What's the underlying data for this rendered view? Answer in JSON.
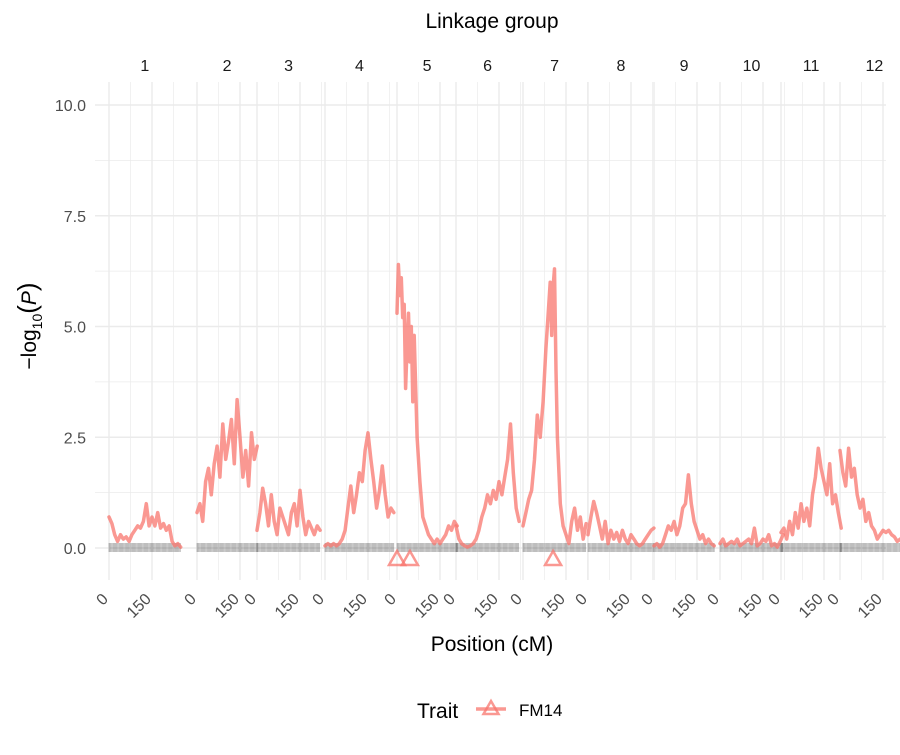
{
  "chart_data": {
    "type": "line",
    "title": "",
    "top_axis_title": "Linkage group",
    "xlabel": "Position (cM)",
    "ylabel_prefix": "−log",
    "ylabel_subscript": "10",
    "ylabel_var": "P",
    "ylim": [
      0,
      10
    ],
    "y_ticks": [
      0,
      2.5,
      5,
      7.5,
      10
    ],
    "y_tick_labels": [
      "0.0",
      "2.5",
      "5.0",
      "7.5",
      "10.0"
    ],
    "x_tick_labels": [
      "0",
      "150"
    ],
    "grid": true,
    "legend": {
      "title": "Trait",
      "position": "bottom",
      "entries": [
        "FM14"
      ]
    },
    "series_color": "#F8766D",
    "panels": [
      {
        "group": "1",
        "length": 250,
        "x": [
          0,
          10,
          20,
          30,
          40,
          50,
          60,
          70,
          80,
          90,
          100,
          110,
          120,
          130,
          140,
          150,
          160,
          170,
          180,
          190,
          200,
          210,
          220,
          230,
          240,
          250
        ],
        "y": [
          0.7,
          0.55,
          0.3,
          0.15,
          0.3,
          0.2,
          0.25,
          0.15,
          0.3,
          0.4,
          0.5,
          0.45,
          0.6,
          1.0,
          0.5,
          0.7,
          0.5,
          0.8,
          0.45,
          0.55,
          0.4,
          0.5,
          0.15,
          0.05,
          0.1,
          0.02
        ],
        "peaks": []
      },
      {
        "group": "2",
        "length": 210,
        "x": [
          0,
          10,
          20,
          30,
          40,
          50,
          60,
          70,
          80,
          90,
          100,
          110,
          120,
          130,
          140,
          150,
          160,
          170,
          180,
          190,
          200,
          210
        ],
        "y": [
          0.8,
          1.0,
          0.6,
          1.5,
          1.8,
          1.2,
          1.9,
          2.3,
          1.6,
          2.8,
          2.0,
          2.4,
          2.9,
          1.9,
          3.35,
          2.5,
          1.6,
          2.2,
          1.4,
          2.6,
          2.0,
          2.3
        ],
        "peaks": []
      },
      {
        "group": "3",
        "length": 220,
        "x": [
          0,
          10,
          20,
          30,
          40,
          50,
          60,
          70,
          80,
          90,
          100,
          110,
          120,
          130,
          140,
          150,
          160,
          170,
          180,
          190,
          200,
          210,
          220
        ],
        "y": [
          0.4,
          0.8,
          1.35,
          1.0,
          0.5,
          1.2,
          0.6,
          0.3,
          0.9,
          0.7,
          0.5,
          0.3,
          0.8,
          1.0,
          0.5,
          1.3,
          0.7,
          0.3,
          0.6,
          0.45,
          0.3,
          0.5,
          0.4
        ],
        "peaks": []
      },
      {
        "group": "4",
        "length": 240,
        "x": [
          0,
          10,
          20,
          30,
          40,
          50,
          60,
          70,
          80,
          90,
          100,
          110,
          120,
          130,
          140,
          150,
          160,
          170,
          180,
          190,
          200,
          210,
          220,
          230,
          240
        ],
        "y": [
          0.05,
          0.1,
          0.05,
          0.1,
          0.05,
          0.1,
          0.2,
          0.4,
          0.9,
          1.4,
          0.8,
          1.2,
          1.7,
          1.5,
          2.2,
          2.6,
          2.0,
          1.5,
          0.9,
          1.3,
          1.85,
          1.2,
          0.7,
          0.9,
          0.8
        ],
        "peaks": []
      },
      {
        "group": "5",
        "length": 210,
        "x": [
          0,
          5,
          10,
          15,
          20,
          25,
          30,
          35,
          40,
          45,
          50,
          55,
          60,
          70,
          80,
          90,
          100,
          110,
          120,
          130,
          140,
          150,
          160,
          170,
          180,
          190,
          200,
          210
        ],
        "y": [
          5.3,
          6.4,
          5.7,
          6.1,
          5.2,
          5.5,
          3.6,
          4.5,
          5.3,
          4.2,
          5.0,
          3.3,
          4.8,
          2.5,
          1.5,
          0.7,
          0.5,
          0.3,
          0.2,
          0.1,
          0.2,
          0.1,
          0.2,
          0.3,
          0.5,
          0.4,
          0.6,
          0.5
        ],
        "peaks": [
          0,
          45
        ]
      },
      {
        "group": "6",
        "length": 220,
        "x": [
          0,
          10,
          20,
          30,
          40,
          50,
          60,
          70,
          80,
          90,
          100,
          110,
          120,
          130,
          140,
          150,
          160,
          170,
          180,
          190,
          200,
          210,
          220
        ],
        "y": [
          0.5,
          0.2,
          0.1,
          0.05,
          0.02,
          0.05,
          0.1,
          0.2,
          0.4,
          0.7,
          0.9,
          1.2,
          1.0,
          1.3,
          1.1,
          1.5,
          1.2,
          1.6,
          2.0,
          2.8,
          1.7,
          0.9,
          0.6
        ],
        "peaks": []
      },
      {
        "group": "7",
        "length": 220,
        "x": [
          0,
          10,
          20,
          30,
          40,
          50,
          60,
          70,
          80,
          90,
          95,
          100,
          105,
          110,
          115,
          120,
          130,
          140,
          150,
          160,
          170,
          180,
          190,
          200,
          210,
          220
        ],
        "y": [
          0.5,
          0.8,
          1.1,
          1.3,
          2.0,
          3.0,
          2.5,
          3.3,
          4.5,
          5.5,
          6.0,
          4.8,
          5.9,
          6.3,
          4.0,
          2.5,
          1.0,
          0.5,
          0.3,
          0.1,
          0.6,
          0.9,
          0.4,
          0.7,
          0.2,
          0.55
        ],
        "peaks": [
          105
        ]
      },
      {
        "group": "8",
        "length": 230,
        "x": [
          0,
          10,
          20,
          30,
          40,
          50,
          60,
          70,
          80,
          90,
          100,
          110,
          120,
          130,
          140,
          150,
          160,
          170,
          180,
          190,
          200,
          210,
          220,
          230
        ],
        "y": [
          0.3,
          0.7,
          1.05,
          0.8,
          0.5,
          0.2,
          0.6,
          0.1,
          0.4,
          0.2,
          0.35,
          0.15,
          0.4,
          0.2,
          0.1,
          0.3,
          0.2,
          0.1,
          0.05,
          0.1,
          0.2,
          0.3,
          0.4,
          0.45
        ],
        "peaks": []
      },
      {
        "group": "9",
        "length": 210,
        "x": [
          0,
          10,
          20,
          30,
          40,
          50,
          60,
          70,
          80,
          90,
          100,
          110,
          120,
          130,
          140,
          150,
          160,
          170,
          180,
          190,
          200,
          210
        ],
        "y": [
          0.05,
          0.1,
          0.02,
          0.1,
          0.3,
          0.5,
          0.4,
          0.6,
          0.3,
          0.5,
          0.9,
          1.0,
          1.65,
          1.0,
          0.6,
          0.4,
          0.2,
          0.3,
          0.1,
          0.2,
          0.1,
          0.05
        ],
        "peaks": []
      },
      {
        "group": "10",
        "length": 220,
        "x": [
          0,
          10,
          20,
          30,
          40,
          50,
          60,
          70,
          80,
          90,
          100,
          110,
          120,
          130,
          140,
          150,
          160,
          170,
          180,
          190,
          200,
          210,
          220
        ],
        "y": [
          0.1,
          0.2,
          0.05,
          0.1,
          0.15,
          0.1,
          0.2,
          0.05,
          0.1,
          0.15,
          0.2,
          0.1,
          0.45,
          0.05,
          0.1,
          0.2,
          0.15,
          0.3,
          0.05,
          0.1,
          0.02,
          0.15,
          0.3
        ],
        "peaks": []
      },
      {
        "group": "11",
        "length": 210,
        "x": [
          0,
          10,
          20,
          30,
          40,
          50,
          60,
          70,
          80,
          90,
          100,
          110,
          120,
          130,
          140,
          150,
          160,
          170,
          180,
          190,
          200,
          210
        ],
        "y": [
          0.35,
          0.45,
          0.2,
          0.6,
          0.3,
          0.8,
          0.45,
          1.0,
          0.6,
          0.9,
          0.5,
          1.2,
          1.6,
          2.25,
          1.8,
          1.5,
          1.2,
          1.9,
          1.0,
          1.2,
          0.8,
          0.45
        ],
        "peaks": []
      },
      {
        "group": "12",
        "length": 240,
        "x": [
          0,
          10,
          20,
          30,
          40,
          50,
          60,
          70,
          80,
          90,
          100,
          110,
          120,
          130,
          140,
          150,
          160,
          170,
          180,
          190,
          200,
          210,
          220,
          230,
          240
        ],
        "y": [
          2.2,
          1.7,
          1.4,
          2.25,
          1.6,
          1.8,
          1.2,
          0.9,
          1.1,
          0.6,
          0.8,
          0.5,
          0.4,
          0.2,
          0.3,
          0.4,
          0.35,
          0.4,
          0.3,
          0.25,
          0.15,
          0.2,
          0.1,
          0.05,
          0.02
        ],
        "peaks": []
      }
    ]
  }
}
